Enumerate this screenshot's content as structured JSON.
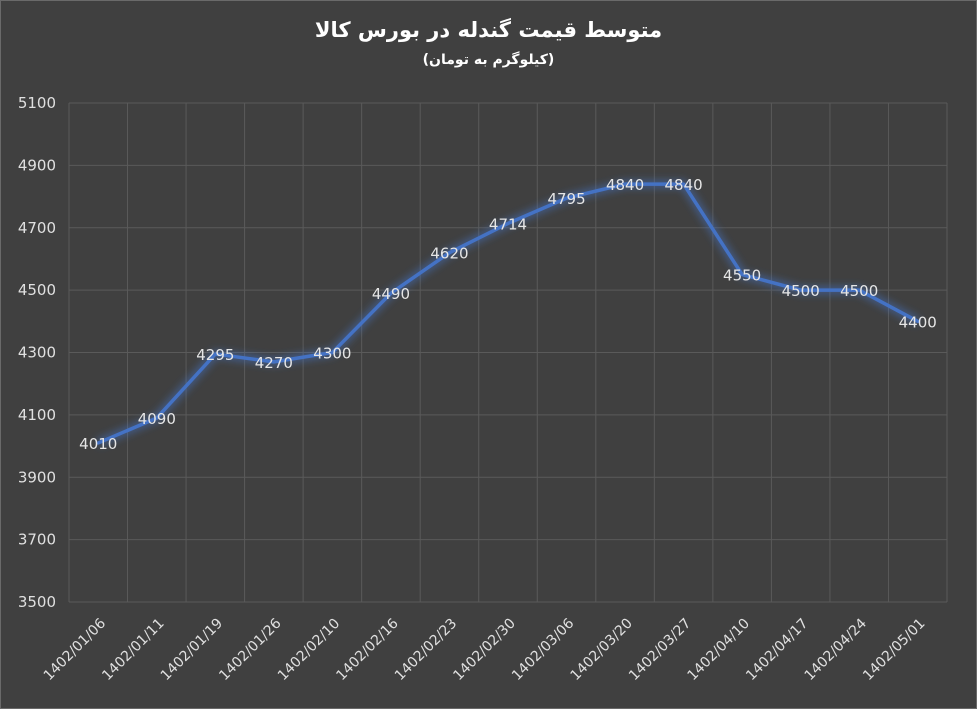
{
  "chart_data": {
    "type": "line",
    "title": "متوسط قیمت گندله در بورس کالا",
    "subtitle": "(کیلوگرم به تومان)",
    "categories": [
      "1402/01/06",
      "1402/01/11",
      "1402/01/19",
      "1402/01/26",
      "1402/02/10",
      "1402/02/16",
      "1402/02/23",
      "1402/02/30",
      "1402/03/06",
      "1402/03/20",
      "1402/03/27",
      "1402/04/10",
      "1402/04/17",
      "1402/04/24",
      "1402/05/01"
    ],
    "series": [
      {
        "values": [
          4010,
          4090,
          4295,
          4270,
          4300,
          4490,
          4620,
          4714,
          4795,
          4840,
          4840,
          4550,
          4500,
          4500,
          4400
        ]
      }
    ],
    "yticks": [
      3500,
      3700,
      3900,
      4100,
      4300,
      4500,
      4700,
      4900,
      5100
    ],
    "ylim": [
      3500,
      5100
    ],
    "grid": true,
    "legend": "none",
    "line_color": "#4472c4"
  }
}
